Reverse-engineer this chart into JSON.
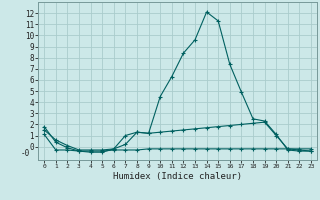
{
  "xlabel": "Humidex (Indice chaleur)",
  "bg_color": "#cce8e8",
  "grid_color": "#aacccc",
  "line_color": "#006060",
  "xlim": [
    -0.5,
    23.5
  ],
  "ylim": [
    -1.2,
    13
  ],
  "xticks": [
    0,
    1,
    2,
    3,
    4,
    5,
    6,
    7,
    8,
    9,
    10,
    11,
    12,
    13,
    14,
    15,
    16,
    17,
    18,
    19,
    20,
    21,
    22,
    23
  ],
  "yticks": [
    0,
    1,
    2,
    3,
    4,
    5,
    6,
    7,
    8,
    9,
    10,
    11,
    12
  ],
  "ytick_labels": [
    "0",
    "1",
    "2",
    "3",
    "4",
    "5",
    "6",
    "7",
    "8",
    "9",
    "10",
    "11",
    "12"
  ],
  "series1_x": [
    0,
    1,
    2,
    3,
    4,
    5,
    6,
    7,
    8,
    9,
    10,
    11,
    12,
    13,
    14,
    15,
    16,
    17,
    18,
    19,
    20,
    21,
    22,
    23
  ],
  "series1_y": [
    1.1,
    -0.3,
    -0.3,
    -0.4,
    -0.4,
    -0.4,
    -0.3,
    -0.3,
    -0.3,
    -0.2,
    -0.2,
    -0.2,
    -0.2,
    -0.2,
    -0.2,
    -0.2,
    -0.2,
    -0.2,
    -0.2,
    -0.2,
    -0.2,
    -0.2,
    -0.2,
    -0.2
  ],
  "series2_x": [
    0,
    1,
    2,
    3,
    4,
    5,
    6,
    7,
    8,
    9,
    10,
    11,
    12,
    13,
    14,
    15,
    16,
    17,
    18,
    19,
    20,
    21,
    22,
    23
  ],
  "series2_y": [
    1.5,
    0.6,
    0.1,
    -0.3,
    -0.3,
    -0.3,
    -0.2,
    0.2,
    1.3,
    1.2,
    1.3,
    1.4,
    1.5,
    1.6,
    1.7,
    1.8,
    1.9,
    2.0,
    2.1,
    2.2,
    1.0,
    -0.2,
    -0.3,
    -0.4
  ],
  "series3_x": [
    0,
    1,
    2,
    3,
    4,
    5,
    6,
    7,
    8,
    9,
    10,
    11,
    12,
    13,
    14,
    15,
    16,
    17,
    18,
    19,
    20,
    21,
    22,
    23
  ],
  "series3_y": [
    1.8,
    0.4,
    -0.1,
    -0.4,
    -0.5,
    -0.5,
    -0.2,
    1.0,
    1.3,
    1.2,
    4.5,
    6.3,
    8.4,
    9.6,
    12.1,
    11.3,
    7.4,
    4.9,
    2.5,
    2.3,
    1.1,
    -0.3,
    -0.4,
    -0.4
  ]
}
